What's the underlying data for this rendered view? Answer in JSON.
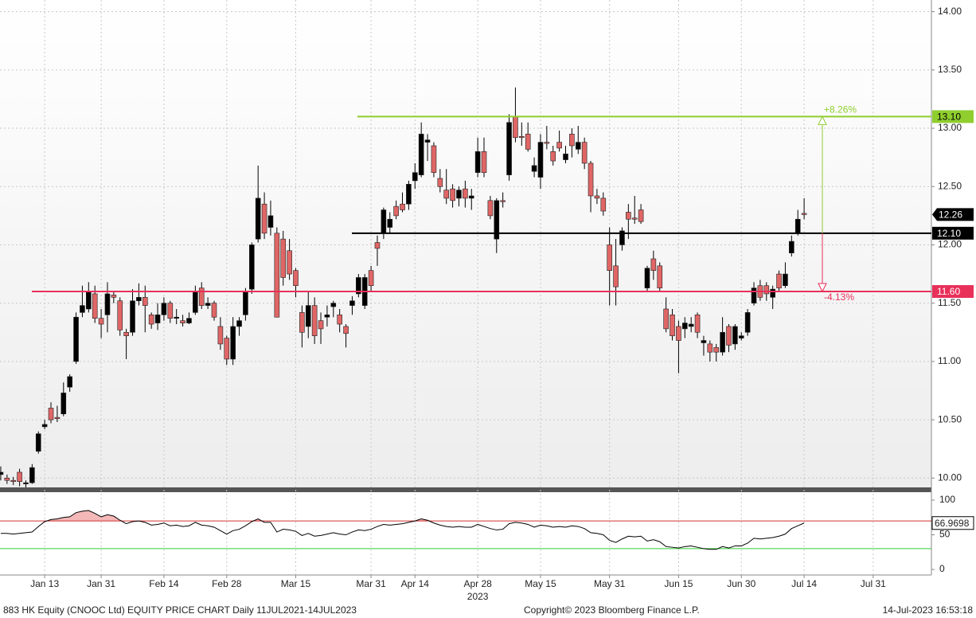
{
  "chart_data": [
    {
      "type": "candlestick",
      "categories": [
        null,
        null,
        null,
        null,
        null,
        null,
        null,
        "Jan 13",
        null,
        null,
        null,
        null,
        null,
        null,
        null,
        null,
        "Jan 31",
        null,
        null,
        null,
        null,
        null,
        null,
        null,
        null,
        null,
        "Feb 14",
        null,
        null,
        null,
        null,
        null,
        null,
        null,
        null,
        null,
        "Feb 28",
        null,
        null,
        null,
        null,
        null,
        null,
        null,
        null,
        null,
        null,
        "Mar 15",
        null,
        null,
        null,
        null,
        null,
        null,
        null,
        null,
        null,
        null,
        null,
        "Mar 31",
        null,
        null,
        null,
        null,
        null,
        null,
        "Apr 14",
        null,
        null,
        null,
        null,
        null,
        null,
        null,
        null,
        null,
        "Apr 28",
        null,
        null,
        null,
        null,
        null,
        null,
        null,
        null,
        null,
        "May 15",
        null,
        null,
        null,
        null,
        null,
        null,
        null,
        null,
        null,
        null,
        "May 31",
        null,
        null,
        null,
        null,
        null,
        null,
        null,
        null,
        null,
        null,
        "Jun 15",
        null,
        null,
        null,
        null,
        null,
        null,
        null,
        null,
        null,
        "Jun 30",
        null,
        null,
        null,
        null,
        null,
        null,
        null,
        null,
        null,
        "Jul 14",
        null,
        null,
        null,
        null,
        null,
        null,
        null,
        null,
        null,
        null,
        "Jul 31",
        null,
        null,
        null,
        null,
        null,
        null,
        null,
        null
      ],
      "year_label": "2023",
      "open": [
        10.03,
        10.0,
        9.98,
        10.05,
        9.95,
        9.96,
        10.23,
        10.44,
        10.6,
        10.52,
        10.55,
        10.78,
        11.0,
        11.42,
        11.45,
        11.58,
        11.37,
        11.4,
        11.57,
        11.52,
        11.25,
        11.25,
        11.52,
        11.55,
        11.4,
        11.33,
        11.4,
        11.5,
        11.37,
        11.35,
        11.33,
        11.42,
        11.63,
        11.48,
        11.5,
        11.3,
        11.2,
        11.02,
        11.3,
        11.4,
        11.62,
        12.05,
        12.35,
        12.15,
        12.1,
        12.05,
        11.95,
        11.78,
        11.42,
        11.3,
        11.48,
        11.35,
        11.38,
        11.47,
        11.4,
        11.3,
        11.48,
        11.58,
        11.48,
        11.78,
        12.02,
        12.1,
        12.15,
        12.33,
        12.35,
        12.35,
        12.55,
        12.6,
        12.88,
        12.85,
        12.57,
        12.47,
        12.48,
        12.4,
        12.48,
        12.4,
        12.62,
        12.8,
        12.38,
        12.05,
        12.38,
        12.6,
        13.1,
        12.93,
        12.95,
        12.63,
        12.58,
        12.88,
        12.8,
        12.88,
        12.73,
        12.95,
        12.82,
        12.88,
        12.7,
        12.42,
        12.4,
        12.0,
        11.82,
        12.0,
        12.28,
        12.23,
        12.3,
        11.63,
        11.88,
        11.82,
        11.45,
        11.4,
        11.3,
        11.28,
        11.3,
        11.4,
        11.16,
        11.15,
        11.12,
        11.08,
        11.3,
        11.15,
        11.2,
        11.25,
        11.5,
        11.65,
        11.65,
        11.55,
        11.75,
        11.65,
        11.93,
        12.1,
        12.27,
        null,
        null,
        null,
        null,
        null,
        null,
        null,
        null,
        null,
        null,
        null,
        null,
        null,
        null,
        null,
        null,
        null,
        null,
        null
      ],
      "high": [
        10.1,
        10.03,
        10.01,
        10.08,
        9.98,
        10.12,
        10.4,
        10.5,
        10.65,
        10.62,
        10.82,
        10.89,
        11.42,
        11.65,
        11.68,
        11.65,
        11.45,
        11.68,
        11.6,
        11.55,
        11.28,
        11.62,
        11.67,
        11.65,
        11.42,
        11.5,
        11.55,
        11.52,
        11.45,
        11.4,
        11.42,
        11.65,
        11.68,
        11.55,
        11.52,
        11.38,
        11.22,
        11.38,
        11.38,
        11.63,
        12.02,
        12.68,
        12.45,
        12.38,
        12.15,
        12.12,
        12.05,
        11.8,
        11.48,
        11.6,
        11.55,
        11.42,
        11.48,
        11.52,
        11.45,
        11.32,
        11.56,
        11.75,
        11.75,
        11.82,
        12.08,
        12.32,
        12.28,
        12.38,
        12.45,
        12.55,
        12.7,
        13.05,
        12.95,
        12.88,
        12.65,
        12.65,
        12.52,
        12.5,
        12.55,
        12.48,
        12.92,
        12.92,
        12.42,
        12.4,
        12.45,
        13.12,
        13.35,
        13.05,
        13.05,
        12.75,
        12.95,
        13.02,
        12.85,
        12.98,
        12.85,
        13.0,
        13.02,
        12.92,
        12.72,
        12.48,
        12.45,
        12.15,
        12.05,
        12.15,
        12.35,
        12.42,
        12.35,
        11.82,
        11.95,
        11.85,
        11.55,
        11.45,
        11.35,
        11.38,
        11.38,
        11.42,
        11.22,
        11.18,
        11.15,
        11.38,
        11.32,
        11.32,
        11.25,
        11.45,
        11.68,
        11.7,
        11.68,
        11.65,
        11.78,
        11.85,
        12.08,
        12.3,
        12.4,
        null,
        null,
        null,
        null,
        null,
        null,
        null,
        null,
        null,
        null,
        null,
        null,
        null,
        null,
        null,
        null,
        null,
        null,
        null
      ],
      "low": [
        9.98,
        9.95,
        9.94,
        9.93,
        9.92,
        9.95,
        10.21,
        10.42,
        10.47,
        10.48,
        10.53,
        10.74,
        10.98,
        11.38,
        11.42,
        11.33,
        11.2,
        11.25,
        11.5,
        11.22,
        11.02,
        11.22,
        11.48,
        11.25,
        11.28,
        11.27,
        11.35,
        11.33,
        11.32,
        11.3,
        11.32,
        11.4,
        11.45,
        11.45,
        11.35,
        11.1,
        10.97,
        10.97,
        11.22,
        11.35,
        11.58,
        12.02,
        12.05,
        12.08,
        11.38,
        11.65,
        11.7,
        11.55,
        11.12,
        11.2,
        11.15,
        11.15,
        11.3,
        11.38,
        11.25,
        11.12,
        11.4,
        11.55,
        11.45,
        11.6,
        11.82,
        12.05,
        12.1,
        12.22,
        12.28,
        12.3,
        12.48,
        12.58,
        12.72,
        12.58,
        12.45,
        12.35,
        12.32,
        12.33,
        12.32,
        12.3,
        12.58,
        12.58,
        12.22,
        11.93,
        12.32,
        12.55,
        12.88,
        12.85,
        12.8,
        12.58,
        12.48,
        12.82,
        12.68,
        12.8,
        12.7,
        12.75,
        12.78,
        12.65,
        12.28,
        12.35,
        12.25,
        11.48,
        11.48,
        11.95,
        12.05,
        12.18,
        12.18,
        11.6,
        11.7,
        11.6,
        11.25,
        11.18,
        10.9,
        11.2,
        11.25,
        11.2,
        11.05,
        11.0,
        11.0,
        11.05,
        11.08,
        11.1,
        11.18,
        11.22,
        11.48,
        11.52,
        11.52,
        11.45,
        11.6,
        11.63,
        11.9,
        12.08,
        12.22,
        null,
        null,
        null,
        null,
        null,
        null,
        null,
        null,
        null,
        null,
        null,
        null,
        null,
        null,
        null,
        null,
        null,
        null,
        null
      ],
      "close": [
        10.05,
        9.98,
        9.97,
        9.97,
        9.96,
        10.09,
        10.38,
        10.46,
        10.5,
        10.51,
        10.73,
        10.87,
        11.38,
        11.48,
        11.6,
        11.37,
        11.32,
        11.58,
        11.55,
        11.27,
        11.22,
        11.52,
        11.55,
        11.48,
        11.32,
        11.4,
        11.5,
        11.37,
        11.38,
        11.33,
        11.37,
        11.6,
        11.48,
        11.5,
        11.38,
        11.15,
        11.02,
        11.3,
        11.35,
        11.6,
        12.0,
        12.4,
        12.1,
        12.25,
        11.38,
        11.72,
        11.75,
        11.65,
        11.25,
        11.48,
        11.22,
        11.28,
        11.4,
        11.5,
        11.32,
        11.24,
        11.52,
        11.72,
        11.72,
        11.65,
        11.97,
        12.3,
        12.22,
        12.25,
        12.3,
        12.52,
        12.62,
        12.95,
        12.9,
        12.62,
        12.5,
        12.4,
        12.38,
        12.47,
        12.4,
        12.42,
        12.8,
        12.62,
        12.25,
        12.38,
        12.37,
        13.05,
        12.92,
        12.92,
        12.82,
        12.68,
        12.88,
        12.87,
        12.72,
        12.83,
        12.78,
        12.85,
        12.88,
        12.7,
        12.42,
        12.4,
        12.29,
        11.78,
        11.64,
        12.12,
        12.22,
        12.22,
        12.2,
        11.8,
        11.78,
        11.63,
        11.28,
        11.22,
        11.18,
        11.33,
        11.32,
        11.25,
        11.18,
        11.08,
        11.08,
        11.25,
        11.14,
        11.3,
        11.22,
        11.42,
        11.63,
        11.55,
        11.58,
        11.62,
        11.63,
        11.75,
        12.03,
        12.22,
        12.26,
        null,
        null,
        null,
        null,
        null,
        null,
        null,
        null,
        null,
        null,
        null,
        null,
        null,
        null,
        null,
        null,
        null,
        null,
        null
      ],
      "up_color": "#000000",
      "down_color": "#e06666",
      "ylim": [
        9.92,
        14.1
      ],
      "yticks": [
        {
          "value": 10,
          "label": "10.00"
        },
        {
          "value": 10.5,
          "label": "10.50"
        },
        {
          "value": 11,
          "label": "11.00"
        },
        {
          "value": 11.5,
          "label": "11.50"
        },
        {
          "value": 12,
          "label": "12.00"
        },
        {
          "value": 12.5,
          "label": "12.50"
        },
        {
          "value": 13,
          "label": "13.00"
        },
        {
          "value": 13.5,
          "label": "13.50"
        },
        {
          "value": 14,
          "label": "14.00"
        }
      ],
      "grid": true,
      "levels": [
        {
          "value": 13.1,
          "label": "13.10",
          "color": "#8fce2e"
        },
        {
          "value": 12.1,
          "label": "12.10",
          "color": "#000000"
        },
        {
          "value": 11.6,
          "label": "11.60",
          "color": "#e8305a"
        }
      ],
      "annotations": [
        {
          "text": "+8.26%",
          "color": "#8fce2e"
        },
        {
          "text": "-4.13%",
          "color": "#e8305a"
        }
      ]
    },
    {
      "type": "line",
      "values": [
        52,
        52,
        51,
        52,
        53,
        54,
        62,
        69,
        72,
        73,
        75,
        76,
        82,
        84,
        85,
        81,
        76,
        79,
        77,
        71,
        66,
        69,
        70,
        68,
        64,
        65,
        67,
        63,
        64,
        62,
        63,
        68,
        64,
        63,
        61,
        56,
        51,
        56,
        58,
        63,
        69,
        73,
        68,
        68,
        54,
        58,
        57,
        55,
        49,
        52,
        48,
        49,
        51,
        53,
        51,
        50,
        54,
        57,
        56,
        58,
        62,
        65,
        64,
        65,
        66,
        68,
        70,
        73,
        71,
        67,
        64,
        62,
        61,
        62,
        61,
        61,
        65,
        62,
        59,
        57,
        58,
        66,
        68,
        67,
        65,
        61,
        64,
        63,
        61,
        62,
        61,
        63,
        62,
        59,
        53,
        52,
        50,
        42,
        39,
        44,
        48,
        47,
        48,
        41,
        43,
        40,
        33,
        32,
        31,
        33,
        34,
        32,
        30,
        29,
        29,
        33,
        31,
        34,
        34,
        38,
        45,
        44,
        45,
        46,
        48,
        51,
        59,
        63,
        66.9698,
        null,
        null,
        null,
        null,
        null,
        null,
        null,
        null,
        null,
        null,
        null,
        null,
        null,
        null,
        null,
        null,
        null,
        null,
        null
      ],
      "color": "#000000",
      "fill_color": "#f4b8b8",
      "ylim": [
        -8,
        111.5
      ],
      "yticks": [
        0,
        50,
        100
      ],
      "levels": [
        {
          "value": 70,
          "color": "#d03030"
        },
        {
          "value": 30,
          "color": "#33cc33"
        }
      ]
    }
  ],
  "footer": {
    "left": "883 HK Equity (CNOOC Ltd) EQUITY PRICE CHART  Daily 11JUL2021-14JUL2023",
    "center": "Copyright© 2023 Bloomberg Finance L.P.",
    "right": "14-Jul-2023 16:53:18"
  }
}
